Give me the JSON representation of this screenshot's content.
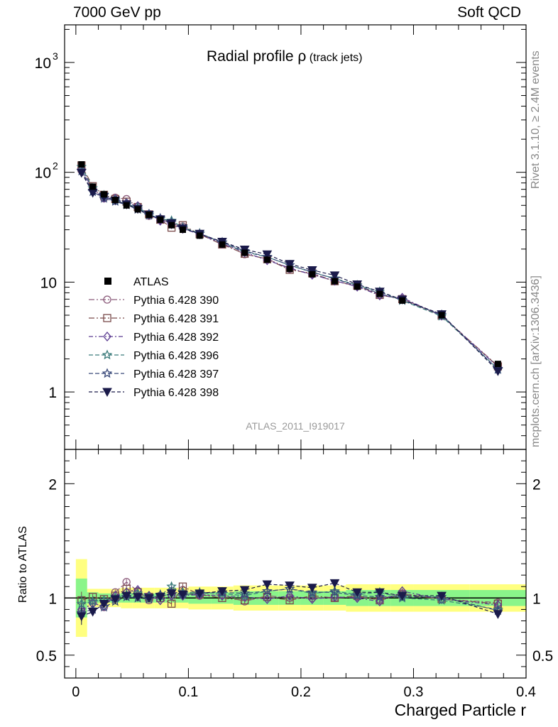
{
  "header": {
    "left": "7000 GeV pp",
    "right": "Soft QCD"
  },
  "side_text": {
    "top": "Rivet 3.1.10, ≥ 2.4M events",
    "bottom": "mcplots.cern.ch [arXiv:1306.3436]"
  },
  "chart_data": {
    "type": "scatter",
    "title": "Radial profile",
    "title_symbol": "ρ",
    "subtitle": "(track jets)",
    "watermark": "ATLAS_2011_I919017",
    "xlabel": "Charged Particle r",
    "ylabel": "",
    "ratio_ylabel": "Ratio to ATLAS",
    "xlim": [
      -0.01,
      0.4
    ],
    "ylim": [
      0.3,
      2200
    ],
    "ratio_ylim": [
      0.3,
      2.3
    ],
    "yscale": "log",
    "x_ticks": [
      {
        "value": 0,
        "label": "0"
      },
      {
        "value": 0.1,
        "label": "0.1"
      },
      {
        "value": 0.2,
        "label": "0.2"
      },
      {
        "value": 0.3,
        "label": "0.3"
      },
      {
        "value": 0.4,
        "label": "0.4"
      }
    ],
    "y_ticks": [
      {
        "value": 1,
        "label": "1"
      },
      {
        "value": 10,
        "label": "10"
      },
      {
        "value": 100,
        "label": "10",
        "exp": "2"
      },
      {
        "value": 1000,
        "label": "10",
        "exp": "3"
      }
    ],
    "ratio_ticks": [
      {
        "value": 0.5,
        "label": "0.5"
      },
      {
        "value": 1,
        "label": "1"
      },
      {
        "value": 2,
        "label": "2"
      }
    ],
    "legend_placement": "middle-left",
    "bin_edges": [
      0,
      0.01,
      0.02,
      0.03,
      0.04,
      0.05,
      0.06,
      0.07,
      0.08,
      0.09,
      0.1,
      0.12,
      0.14,
      0.16,
      0.18,
      0.2,
      0.22,
      0.24,
      0.26,
      0.28,
      0.3,
      0.35,
      0.4
    ],
    "x": [
      0.005,
      0.015,
      0.025,
      0.035,
      0.045,
      0.055,
      0.065,
      0.075,
      0.085,
      0.095,
      0.11,
      0.13,
      0.15,
      0.17,
      0.19,
      0.21,
      0.23,
      0.25,
      0.27,
      0.29,
      0.325,
      0.375
    ],
    "data": {
      "name": "ATLAS",
      "values": [
        118,
        74,
        63,
        56,
        50,
        46,
        41,
        37,
        33,
        30,
        26.5,
        22,
        18.5,
        16,
        13.2,
        11.8,
        10.2,
        9.1,
        7.8,
        6.8,
        5.0,
        1.8
      ],
      "band_inner": [
        0.17,
        0.05,
        0.04,
        0.04,
        0.04,
        0.04,
        0.04,
        0.04,
        0.04,
        0.04,
        0.05,
        0.05,
        0.06,
        0.06,
        0.06,
        0.06,
        0.06,
        0.07,
        0.07,
        0.07,
        0.07,
        0.07
      ],
      "band_outer": [
        0.34,
        0.08,
        0.08,
        0.08,
        0.09,
        0.09,
        0.09,
        0.09,
        0.09,
        0.09,
        0.1,
        0.1,
        0.11,
        0.11,
        0.11,
        0.11,
        0.11,
        0.12,
        0.12,
        0.12,
        0.12,
        0.12
      ]
    },
    "series": [
      {
        "name": "Pythia 6.428 390",
        "color": "#8b5a7a",
        "dash": "8,3,2,3",
        "marker": "circle",
        "ratio": [
          0.88,
          0.96,
          0.92,
          1.05,
          1.14,
          1.06,
          0.98,
          1.02,
          1.03,
          1.07,
          1.02,
          1.03,
          0.97,
          1.02,
          1.0,
          1.0,
          1.0,
          1.01,
          0.99,
          1.04,
          0.99,
          0.96
        ]
      },
      {
        "name": "Pythia 6.428 391",
        "color": "#7a4a4a",
        "dash": "8,3,2,3",
        "marker": "square",
        "ratio": [
          0.98,
          1.01,
          0.99,
          1.02,
          1.08,
          1.05,
          1.01,
          1.0,
          0.95,
          1.1,
          1.03,
          1.0,
          0.98,
          1.01,
          0.98,
          1.02,
          1.0,
          1.02,
          0.98,
          1.03,
          0.99,
          0.95
        ]
      },
      {
        "name": "Pythia 6.428 392",
        "color": "#5a3a90",
        "dash": "6,3,2,3",
        "marker": "diamond",
        "ratio": [
          0.9,
          0.95,
          0.93,
          1.02,
          1.05,
          1.07,
          1.02,
          0.98,
          1.02,
          1.02,
          1.03,
          1.02,
          1.01,
          0.99,
          1.02,
          0.99,
          1.01,
          1.0,
          0.97,
          1.06,
          0.99,
          0.94
        ]
      },
      {
        "name": "Pythia 6.428 396",
        "color": "#3a7a7a",
        "dash": "6,3",
        "marker": "star",
        "ratio": [
          0.95,
          0.97,
          0.98,
          1.0,
          1.03,
          1.04,
          1.01,
          1.02,
          1.1,
          1.05,
          1.05,
          1.04,
          1.02,
          1.06,
          1.08,
          1.04,
          1.06,
          1.03,
          1.05,
          1.0,
          0.98,
          0.9
        ]
      },
      {
        "name": "Pythia 6.428 397",
        "color": "#3a4a7a",
        "dash": "6,3",
        "marker": "star",
        "ratio": [
          0.87,
          0.9,
          0.92,
          0.97,
          1.01,
          1.0,
          0.99,
          1.03,
          1.06,
          1.03,
          1.04,
          1.05,
          1.04,
          1.06,
          1.08,
          1.05,
          1.05,
          1.02,
          1.01,
          1.01,
          1.01,
          0.89
        ]
      },
      {
        "name": "Pythia 6.428 398",
        "color": "#1a1a4a",
        "dash": "5,3",
        "marker": "triangle-down",
        "ratio": [
          0.84,
          0.88,
          0.95,
          0.99,
          1.02,
          1.01,
          1.0,
          1.01,
          1.04,
          1.03,
          1.04,
          1.06,
          1.07,
          1.12,
          1.11,
          1.09,
          1.13,
          1.05,
          1.05,
          1.02,
          1.02,
          0.86
        ]
      }
    ]
  }
}
